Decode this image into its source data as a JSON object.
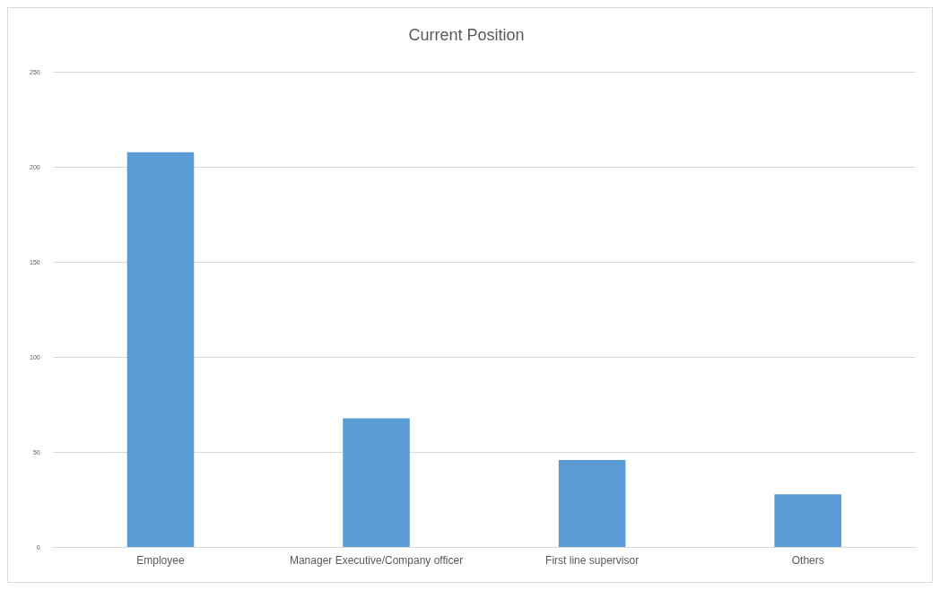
{
  "chart_data": {
    "type": "bar",
    "title": "Current Position",
    "categories": [
      "Employee",
      "Manager Executive/Company officer",
      "First line supervisor",
      "Others"
    ],
    "values": [
      208,
      68,
      46,
      28
    ],
    "color": "#5b9bd5",
    "ylim": [
      0,
      250
    ],
    "yticks": [
      0,
      50,
      100,
      150,
      200,
      250
    ],
    "grid": "y"
  }
}
